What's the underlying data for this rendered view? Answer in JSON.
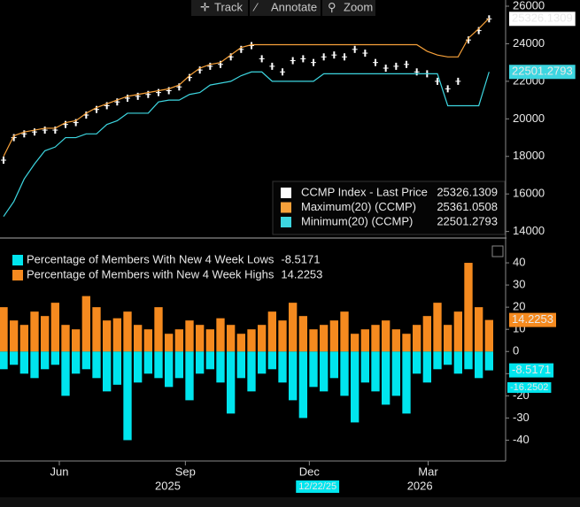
{
  "toolbar": [
    "Track",
    "Annotate",
    "Zoom"
  ],
  "chart_data": [
    {
      "type": "line",
      "xlim": [
        0,
        48
      ],
      "ylim": [
        13700,
        26330
      ],
      "yticks": [
        14000,
        16000,
        18000,
        20000,
        22000,
        24000,
        26000
      ],
      "x": [
        0,
        1,
        2,
        3,
        4,
        5,
        6,
        7,
        8,
        9,
        10,
        11,
        12,
        13,
        14,
        15,
        16,
        17,
        18,
        19,
        20,
        21,
        22,
        23,
        24,
        25,
        26,
        27,
        28,
        29,
        30,
        31,
        32,
        33,
        34,
        35,
        36,
        37,
        38,
        39,
        40,
        41,
        42,
        43,
        44,
        45,
        46,
        47
      ],
      "legend": "bottom-right",
      "series": [
        {
          "name": "CCMP Index - Last Price",
          "color": "#ffffff",
          "style": "markers",
          "values": [
            17800,
            19000,
            19200,
            19300,
            19400,
            19400,
            19700,
            19800,
            20200,
            20500,
            20700,
            20900,
            21100,
            21200,
            21300,
            21400,
            21500,
            21700,
            22200,
            22600,
            22800,
            22900,
            23300,
            23700,
            23900,
            23200,
            22800,
            22500,
            23100,
            23200,
            23000,
            23300,
            23400,
            23300,
            23700,
            23500,
            23000,
            22700,
            22800,
            22900,
            22500,
            22400,
            22000,
            21600,
            22000,
            24200,
            24700,
            25326.1309
          ]
        },
        {
          "name": "Maximum(20) (CCMP)",
          "color": "#f7a13a",
          "style": "line",
          "values": [
            18000,
            19100,
            19300,
            19400,
            19500,
            19500,
            19800,
            19900,
            20300,
            20600,
            20800,
            21000,
            21200,
            21300,
            21400,
            21500,
            21600,
            21800,
            22300,
            22700,
            22900,
            23000,
            23400,
            23800,
            23950,
            23950,
            23950,
            23950,
            23950,
            23950,
            23950,
            23950,
            23950,
            23950,
            23950,
            23950,
            23950,
            23950,
            23950,
            23950,
            23950,
            23600,
            23400,
            23300,
            23300,
            24300,
            24800,
            25361.0508
          ]
        },
        {
          "name": "Minimum(20) (CCMP)",
          "color": "#3dd6e0",
          "style": "line",
          "values": [
            14800,
            15600,
            16800,
            17600,
            18300,
            18500,
            19000,
            19000,
            19200,
            19200,
            19700,
            19900,
            20300,
            20300,
            20300,
            20900,
            21000,
            21000,
            21300,
            21400,
            21800,
            21900,
            22000,
            22300,
            22500,
            22500,
            22000,
            22000,
            22000,
            22000,
            22000,
            22400,
            22400,
            22400,
            22400,
            22400,
            22400,
            22400,
            22400,
            22400,
            22400,
            22400,
            22400,
            20700,
            20700,
            20700,
            20700,
            22501.2793
          ]
        }
      ]
    },
    {
      "type": "bar",
      "xlim": [
        0,
        48
      ],
      "ylim": [
        -49,
        50
      ],
      "yticks": [
        -40,
        -30,
        -20,
        -10,
        0,
        10,
        20,
        30,
        40
      ],
      "x": [
        0,
        1,
        2,
        3,
        4,
        5,
        6,
        7,
        8,
        9,
        10,
        11,
        12,
        13,
        14,
        15,
        16,
        17,
        18,
        19,
        20,
        21,
        22,
        23,
        24,
        25,
        26,
        27,
        28,
        29,
        30,
        31,
        32,
        33,
        34,
        35,
        36,
        37,
        38,
        39,
        40,
        41,
        42,
        43,
        44,
        45,
        46,
        47
      ],
      "xticks": [
        {
          "value": 5.4,
          "label": "Jun"
        },
        {
          "value": 17.6,
          "label": "Sep"
        },
        {
          "value": 29.6,
          "label": "Dec"
        },
        {
          "value": 41.1,
          "label": "Mar"
        }
      ],
      "year_labels": [
        {
          "value": 15.9,
          "label": "2025"
        },
        {
          "value": 40.3,
          "label": "2026"
        }
      ],
      "cursor_label": {
        "value": 30.4,
        "label": "12/22/25"
      },
      "annotations": [
        {
          "y": -16.2502
        }
      ],
      "legend": "top-left",
      "series": [
        {
          "name": "Percentage of Members With New 4 Week Lows",
          "color": "#00e5ee",
          "values": [
            -8,
            -6,
            -10,
            -12,
            -8,
            -6,
            -20,
            -10,
            -8,
            -12,
            -18,
            -15,
            -40,
            -14,
            -10,
            -12,
            -16,
            -12,
            -22,
            -10,
            -8,
            -14,
            -28,
            -12,
            -18,
            -10,
            -8,
            -14,
            -22,
            -30,
            -16,
            -18,
            -12,
            -20,
            -32,
            -14,
            -18,
            -24,
            -20,
            -28,
            -10,
            -14,
            -8,
            -6,
            -10,
            -8,
            -12,
            -8.5171
          ]
        },
        {
          "name": "Percentage of Members with New 4 Week Highs",
          "color": "#f58a1f",
          "values": [
            20,
            14,
            12,
            18,
            16,
            22,
            12,
            10,
            25,
            20,
            14,
            15,
            18,
            12,
            10,
            20,
            8,
            10,
            14,
            12,
            10,
            15,
            12,
            8,
            10,
            12,
            18,
            14,
            22,
            16,
            10,
            12,
            14,
            18,
            8,
            10,
            12,
            14,
            10,
            8,
            12,
            16,
            22,
            12,
            18,
            40,
            20,
            14.2253
          ]
        }
      ]
    }
  ]
}
